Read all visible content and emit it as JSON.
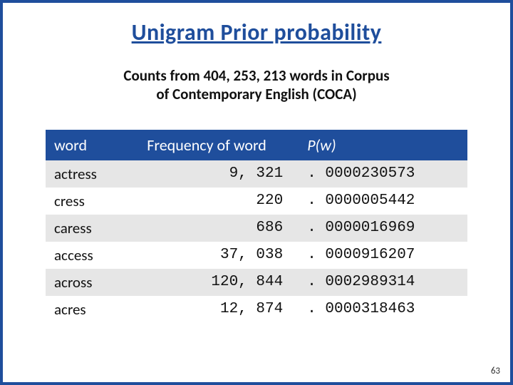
{
  "title": "Unigram Prior probability",
  "subtitle_line1": "Counts from 404, 253, 213 words in Corpus",
  "subtitle_line2": "of Contemporary English (COCA)",
  "slide_number": "63",
  "colors": {
    "border": "#1f4e9c",
    "title_text": "#1f4e9c",
    "header_bg": "#1f4e9c",
    "header_text": "#ffffff",
    "row_odd_bg": "#e6e6e6",
    "row_even_bg": "#ffffff",
    "body_text": "#111111"
  },
  "table": {
    "type": "table",
    "columns": [
      "word",
      "Frequency of word",
      "P(w)"
    ],
    "header": {
      "word": "word",
      "freq": "Frequency of word",
      "pw": "P(w)"
    },
    "column_widths_pct": [
      22,
      38,
      40
    ],
    "font": {
      "header_size_pt": 16,
      "cell_size_pt": 15,
      "mono_family": "Courier New"
    },
    "rows": [
      {
        "word": "actress",
        "freq": "9, 321",
        "pw": ". 0000230573"
      },
      {
        "word": "cress",
        "freq": "220",
        "pw": ". 0000005442"
      },
      {
        "word": "caress",
        "freq": "686",
        "pw": ". 0000016969"
      },
      {
        "word": "access",
        "freq": "37, 038",
        "pw": ". 0000916207"
      },
      {
        "word": "across",
        "freq": "120, 844",
        "pw": ". 0002989314"
      },
      {
        "word": "acres",
        "freq": "12, 874",
        "pw": ". 0000318463"
      }
    ]
  }
}
